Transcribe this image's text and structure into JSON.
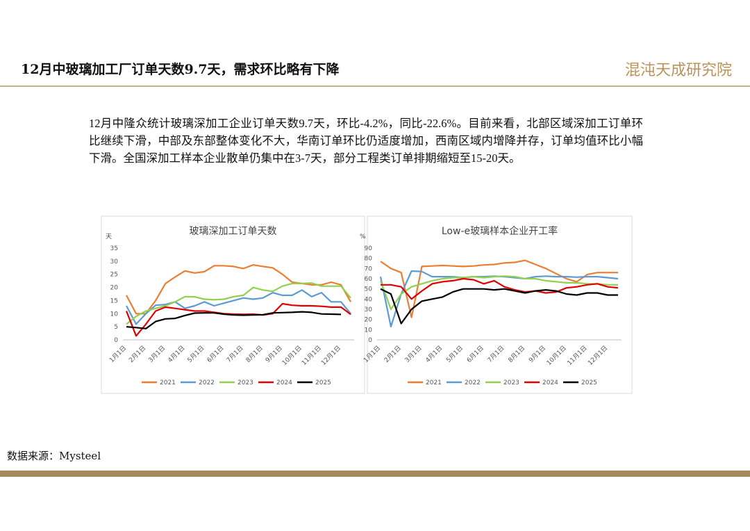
{
  "header": {
    "title": "12月中玻璃加工厂订单天数9.7天，需求环比略有下降",
    "logo": "混沌天成研究院"
  },
  "body": {
    "text": "12月中隆众统计玻璃深加工企业订单天数9.7天，环比-4.2%，同比-22.6%。目前来看，北部区域深加工订单环比继续下滑，中部及东部整体变化不大，华南订单环比仍适度增加，西南区域内增降并存，订单均值环比小幅下滑。全国深加工样本企业散单仍集中在3-7天，部分工程类订单排期缩短至15-20天。"
  },
  "source": "数据来源：Mysteel",
  "chart_data": [
    {
      "type": "line",
      "title": "玻璃深加工订单天数",
      "y_label": "天",
      "categories": [
        "1月1日",
        null,
        "2月1日",
        null,
        "3月1日",
        null,
        "4月1日",
        null,
        "5月1日",
        null,
        "6月1日",
        null,
        "7月1日",
        null,
        "8月1日",
        null,
        "9月1日",
        null,
        "10月1日",
        null,
        "11月1日",
        null,
        "12月1日",
        null
      ],
      "ylim": [
        0,
        35
      ],
      "yticks": [
        0,
        5,
        10,
        15,
        20,
        25,
        30,
        35
      ],
      "grid": false,
      "legend": "bottom",
      "series": [
        {
          "name": "2021",
          "color": "#ed7d31",
          "values": [
            17,
            10,
            10,
            15,
            21.5,
            24,
            26.3,
            25.5,
            26,
            28.3,
            28.3,
            28,
            27.2,
            28.6,
            28,
            27.5,
            25,
            22,
            21.5,
            21,
            21,
            22,
            21,
            14.5
          ]
        },
        {
          "name": "2022",
          "color": "#5b9bd5",
          "values": [
            13,
            6,
            10,
            13.2,
            13.5,
            14.5,
            12,
            13,
            14.5,
            13,
            14,
            15,
            16,
            15.5,
            16,
            18,
            17,
            17,
            19,
            16.5,
            18,
            14.5,
            14.5,
            10
          ]
        },
        {
          "name": "2023",
          "color": "#92d050",
          "values": [
            6,
            9,
            11,
            12,
            13,
            14.5,
            16.5,
            16.4,
            15.5,
            15.3,
            15.5,
            16.5,
            17,
            20,
            19,
            18.5,
            20.5,
            21.5,
            21.5,
            21.7,
            20.5,
            20.5,
            20.5,
            16
          ]
        },
        {
          "name": "2024",
          "color": "#e00000",
          "values": [
            11,
            1.5,
            6,
            11,
            12.5,
            12,
            11.5,
            11,
            11,
            10.5,
            10,
            9.8,
            9.7,
            9.8,
            9.5,
            10,
            13.8,
            13.2,
            13,
            13,
            12.8,
            12.5,
            12.5,
            9.7
          ]
        },
        {
          "name": "2025",
          "color": "#000000",
          "values": [
            5,
            4.7,
            4.3,
            7,
            8,
            8.2,
            9.3,
            10.2,
            10.3,
            10.3,
            9.8,
            9.5,
            9.4,
            9.5,
            9.6,
            10.3,
            10.4,
            10.5,
            10.7,
            10.5,
            9.9,
            9.8,
            9.7,
            null
          ]
        }
      ]
    },
    {
      "type": "line",
      "title": "Low-e玻璃样本企业开工率",
      "y_label": "%",
      "categories": [
        "1月1日",
        null,
        "2月1日",
        null,
        "3月1日",
        null,
        "4月1日",
        null,
        "5月1日",
        null,
        "6月1日",
        null,
        "7月1日",
        null,
        "8月1日",
        null,
        "9月1日",
        null,
        "10月1日",
        null,
        "11月1日",
        null,
        "12月1日",
        null
      ],
      "ylim": [
        0,
        90
      ],
      "yticks": [
        0,
        10,
        20,
        30,
        40,
        50,
        60,
        70,
        80,
        90
      ],
      "grid": false,
      "legend": "bottom",
      "series": [
        {
          "name": "2021",
          "color": "#ed7d31",
          "values": [
            77,
            70,
            66,
            22,
            72,
            72.5,
            73,
            72.5,
            72,
            72.5,
            73.5,
            74,
            75.5,
            76,
            78,
            74,
            70,
            65,
            60,
            57,
            64,
            66,
            66,
            66
          ]
        },
        {
          "name": "2022",
          "color": "#5b9bd5",
          "values": [
            62,
            13,
            45,
            67.5,
            67,
            62,
            62,
            62,
            61,
            62,
            62,
            62.5,
            62,
            61,
            60,
            62,
            62.5,
            62,
            62,
            61.5,
            62,
            62,
            61,
            60
          ]
        },
        {
          "name": "2023",
          "color": "#92d050",
          "values": [
            58,
            30,
            45,
            52,
            55,
            58,
            60,
            61,
            61,
            62,
            61,
            62,
            62.5,
            62,
            60,
            60,
            58,
            57,
            56,
            56,
            55,
            55,
            54,
            54
          ]
        },
        {
          "name": "2024",
          "color": "#e00000",
          "values": [
            54,
            54,
            52,
            40,
            48,
            55,
            57,
            58,
            60,
            59,
            55,
            58,
            52,
            49,
            47,
            48,
            46,
            47,
            51,
            52,
            54,
            55,
            52,
            51
          ]
        },
        {
          "name": "2025",
          "color": "#000000",
          "values": [
            50,
            45,
            16,
            30,
            38,
            40,
            42,
            47,
            50,
            50,
            50,
            49,
            50,
            48,
            46,
            48,
            49,
            48,
            45,
            44,
            46,
            46,
            44,
            44
          ]
        }
      ]
    }
  ]
}
